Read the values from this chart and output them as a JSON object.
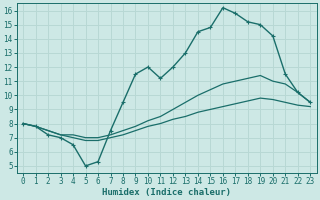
{
  "xlabel": "Humidex (Indice chaleur)",
  "xlim": [
    -0.5,
    23.5
  ],
  "ylim": [
    4.5,
    16.5
  ],
  "xticks": [
    0,
    1,
    2,
    3,
    4,
    5,
    6,
    7,
    8,
    9,
    10,
    11,
    12,
    13,
    14,
    15,
    16,
    17,
    18,
    19,
    20,
    21,
    22,
    23
  ],
  "yticks": [
    5,
    6,
    7,
    8,
    9,
    10,
    11,
    12,
    13,
    14,
    15,
    16
  ],
  "bg_color": "#cde8e5",
  "grid_color": "#b8d8d4",
  "line_color": "#1a6e6a",
  "series_main": [
    8.0,
    7.8,
    7.2,
    7.0,
    6.5,
    5.0,
    5.3,
    7.5,
    9.5,
    11.5,
    12.0,
    11.2,
    12.0,
    13.0,
    14.5,
    14.8,
    16.2,
    15.8,
    15.2,
    15.0,
    14.2,
    11.5,
    10.2,
    9.5
  ],
  "series_high": [
    8.0,
    7.8,
    7.5,
    7.2,
    7.2,
    7.0,
    7.0,
    7.2,
    7.5,
    7.8,
    8.2,
    8.5,
    9.0,
    9.5,
    10.0,
    10.4,
    10.8,
    11.0,
    11.2,
    11.4,
    11.0,
    10.8,
    10.2,
    9.5
  ],
  "series_low": [
    8.0,
    7.8,
    7.5,
    7.2,
    7.0,
    6.8,
    6.8,
    7.0,
    7.2,
    7.5,
    7.8,
    8.0,
    8.3,
    8.5,
    8.8,
    9.0,
    9.2,
    9.4,
    9.6,
    9.8,
    9.7,
    9.5,
    9.3,
    9.2
  ]
}
